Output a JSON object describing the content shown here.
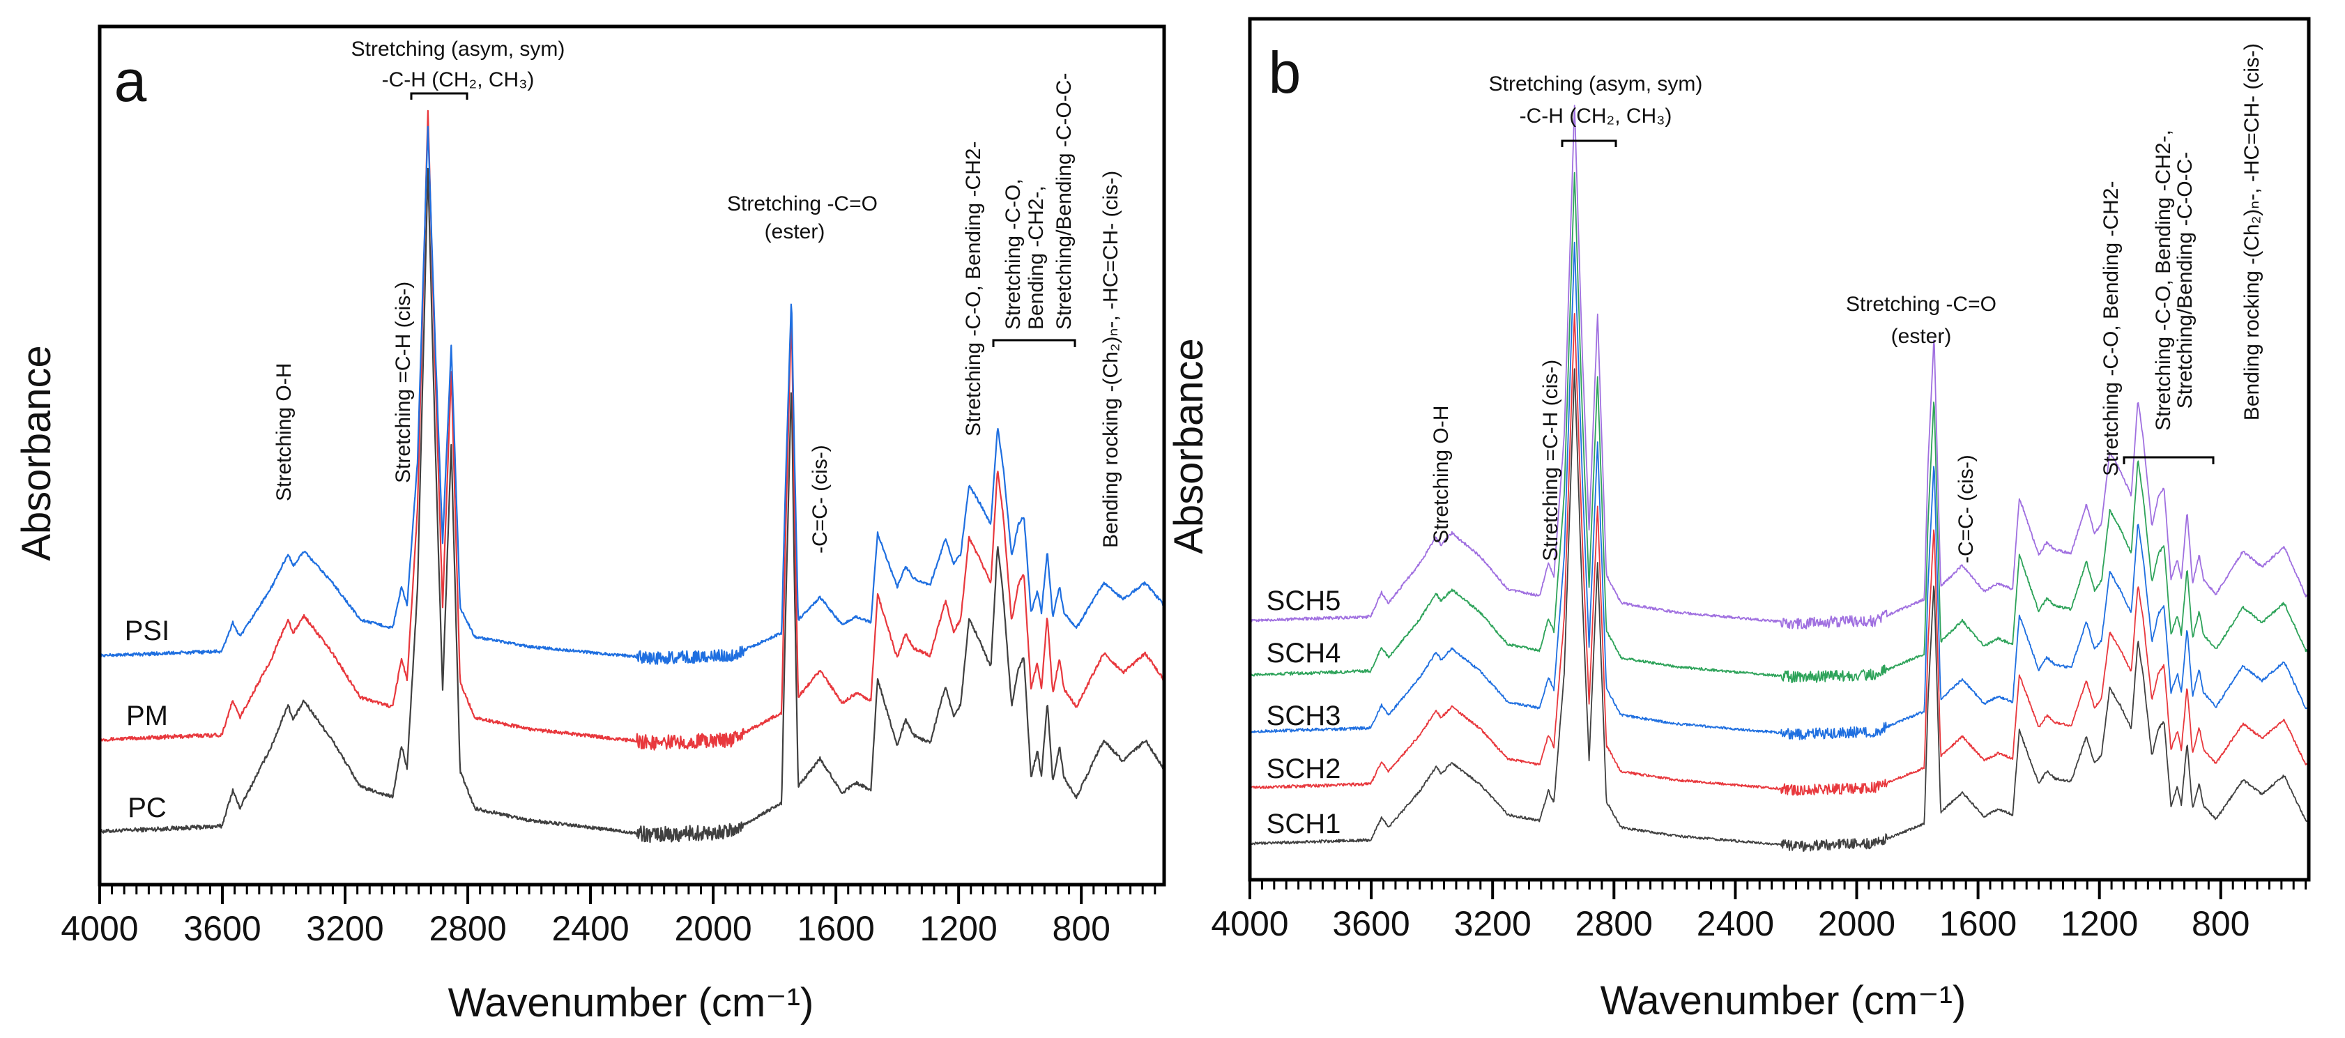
{
  "chart_data": [
    {
      "type": "line",
      "panel": "a",
      "title": "",
      "xlabel": "Wavenumber (cm⁻¹)",
      "ylabel": "Absorbance",
      "xlim": [
        4000,
        530
      ],
      "ylim": [
        0,
        1
      ],
      "xticks": [
        4000,
        3600,
        3200,
        2800,
        2400,
        2000,
        1600,
        1200,
        800
      ],
      "minor_tick_step": 40,
      "grid": false,
      "legend": "inline-left",
      "profile_note": "base spectrum shape, relative absorbance vs wavenumber; series = offset + scale*(profile - 0.062)",
      "profile": [
        [
          4000,
          0.062
        ],
        [
          3602,
          0.068
        ],
        [
          3566,
          0.11
        ],
        [
          3543,
          0.089
        ],
        [
          3439,
          0.162
        ],
        [
          3386,
          0.21
        ],
        [
          3370,
          0.192
        ],
        [
          3334,
          0.214
        ],
        [
          3241,
          0.168
        ],
        [
          3150,
          0.114
        ],
        [
          3045,
          0.102
        ],
        [
          3016,
          0.162
        ],
        [
          2998,
          0.135
        ],
        [
          2964,
          0.344
        ],
        [
          2930,
          0.834
        ],
        [
          2905,
          0.5
        ],
        [
          2882,
          0.226
        ],
        [
          2854,
          0.513
        ],
        [
          2825,
          0.132
        ],
        [
          2777,
          0.089
        ],
        [
          2600,
          0.075
        ],
        [
          2198,
          0.058
        ],
        [
          1939,
          0.062
        ],
        [
          1777,
          0.095
        ],
        [
          1765,
          0.3
        ],
        [
          1745,
          0.586
        ],
        [
          1735,
          0.35
        ],
        [
          1723,
          0.114
        ],
        [
          1652,
          0.147
        ],
        [
          1580,
          0.107
        ],
        [
          1534,
          0.119
        ],
        [
          1486,
          0.11
        ],
        [
          1464,
          0.24
        ],
        [
          1400,
          0.162
        ],
        [
          1373,
          0.192
        ],
        [
          1346,
          0.174
        ],
        [
          1293,
          0.165
        ],
        [
          1243,
          0.232
        ],
        [
          1216,
          0.195
        ],
        [
          1193,
          0.21
        ],
        [
          1166,
          0.31
        ],
        [
          1130,
          0.283
        ],
        [
          1095,
          0.253
        ],
        [
          1073,
          0.395
        ],
        [
          1055,
          0.338
        ],
        [
          1027,
          0.207
        ],
        [
          1005,
          0.253
        ],
        [
          987,
          0.265
        ],
        [
          964,
          0.125
        ],
        [
          943,
          0.156
        ],
        [
          930,
          0.125
        ],
        [
          911,
          0.214
        ],
        [
          893,
          0.119
        ],
        [
          871,
          0.162
        ],
        [
          857,
          0.125
        ],
        [
          816,
          0.102
        ],
        [
          727,
          0.168
        ],
        [
          664,
          0.144
        ],
        [
          591,
          0.168
        ],
        [
          534,
          0.137
        ]
      ],
      "series": [
        {
          "name": "PC",
          "color": "#404040",
          "offset": 0.062,
          "scale": 1.0
        },
        {
          "name": "PM",
          "color": "#e8383d",
          "offset": 0.169,
          "scale": 0.95
        },
        {
          "name": "PSI",
          "color": "#1f6fe0",
          "offset": 0.267,
          "scale": 0.8
        }
      ],
      "annotations": [
        "Stretching (asym, sym)",
        "-C-H (CH₂, CH₃)",
        "Stretching O-H",
        "Stretching =C-H (cis-)",
        "Stretching -C=O",
        "(ester)",
        "-C=C- (cis-)",
        "Stretching -C-O, Bending -CH2-",
        "Stretching -C-O,",
        "Bending -CH2-,",
        "Stretching/Bending -C-O-C-",
        "Bending rocking -(Ch₂)ₙ-, -HC=CH- (cis-)"
      ]
    },
    {
      "type": "line",
      "panel": "b",
      "title": "",
      "xlabel": "Wavenumber (cm⁻¹)",
      "ylabel": "Absorbance",
      "xlim": [
        4000,
        510
      ],
      "ylim": [
        0,
        1
      ],
      "xticks": [
        4000,
        3600,
        3200,
        2800,
        2400,
        2000,
        1600,
        1200,
        800
      ],
      "minor_tick_step": 40,
      "grid": false,
      "legend": "inline-left",
      "profile_note": "base spectrum shape, relative absorbance vs wavenumber; series = offset + scale*(profile - 0.062)",
      "profile": [
        [
          4000,
          0.062
        ],
        [
          3602,
          0.068
        ],
        [
          3566,
          0.105
        ],
        [
          3543,
          0.089
        ],
        [
          3439,
          0.15
        ],
        [
          3386,
          0.19
        ],
        [
          3370,
          0.178
        ],
        [
          3334,
          0.196
        ],
        [
          3241,
          0.16
        ],
        [
          3150,
          0.11
        ],
        [
          3045,
          0.1
        ],
        [
          3016,
          0.15
        ],
        [
          2998,
          0.13
        ],
        [
          2964,
          0.344
        ],
        [
          2930,
          0.85
        ],
        [
          2905,
          0.48
        ],
        [
          2882,
          0.2
        ],
        [
          2854,
          0.53
        ],
        [
          2825,
          0.132
        ],
        [
          2777,
          0.089
        ],
        [
          2600,
          0.075
        ],
        [
          2198,
          0.058
        ],
        [
          1939,
          0.062
        ],
        [
          1777,
          0.095
        ],
        [
          1765,
          0.3
        ],
        [
          1745,
          0.5
        ],
        [
          1735,
          0.32
        ],
        [
          1723,
          0.114
        ],
        [
          1652,
          0.147
        ],
        [
          1580,
          0.107
        ],
        [
          1534,
          0.119
        ],
        [
          1486,
          0.11
        ],
        [
          1464,
          0.25
        ],
        [
          1400,
          0.162
        ],
        [
          1373,
          0.182
        ],
        [
          1346,
          0.17
        ],
        [
          1293,
          0.165
        ],
        [
          1243,
          0.24
        ],
        [
          1216,
          0.195
        ],
        [
          1193,
          0.21
        ],
        [
          1166,
          0.32
        ],
        [
          1130,
          0.29
        ],
        [
          1095,
          0.253
        ],
        [
          1073,
          0.4
        ],
        [
          1055,
          0.338
        ],
        [
          1027,
          0.207
        ],
        [
          1005,
          0.253
        ],
        [
          987,
          0.265
        ],
        [
          964,
          0.125
        ],
        [
          943,
          0.156
        ],
        [
          930,
          0.125
        ],
        [
          911,
          0.23
        ],
        [
          893,
          0.119
        ],
        [
          871,
          0.162
        ],
        [
          857,
          0.125
        ],
        [
          816,
          0.102
        ],
        [
          727,
          0.168
        ],
        [
          664,
          0.144
        ],
        [
          591,
          0.175
        ],
        [
          520,
          0.1
        ]
      ],
      "series": [
        {
          "name": "SCH1",
          "color": "#404040",
          "offset": 0.042,
          "scale": 0.7
        },
        {
          "name": "SCH2",
          "color": "#e8383d",
          "offset": 0.107,
          "scale": 0.7
        },
        {
          "name": "SCH3",
          "color": "#1f6fe0",
          "offset": 0.172,
          "scale": 0.72
        },
        {
          "name": "SCH4",
          "color": "#2ea35a",
          "offset": 0.238,
          "scale": 0.74
        },
        {
          "name": "SCH5",
          "color": "#a070e0",
          "offset": 0.301,
          "scale": 0.76
        }
      ],
      "annotations": [
        "Stretching (asym, sym)",
        "-C-H (CH₂, CH₃)",
        "Stretching O-H",
        "Stretching =C-H (cis-)",
        "Stretching -C=O",
        "(ester)",
        "-C=C- (cis-)",
        "Stretching -C-O, Bending -CH2-",
        "Stretching -C-O, Bending -CH2-,",
        "Stretching/Bending -C-O-C-",
        "Bending rocking -(Ch₂)ₙ-, -HC=CH- (cis-)"
      ]
    }
  ]
}
